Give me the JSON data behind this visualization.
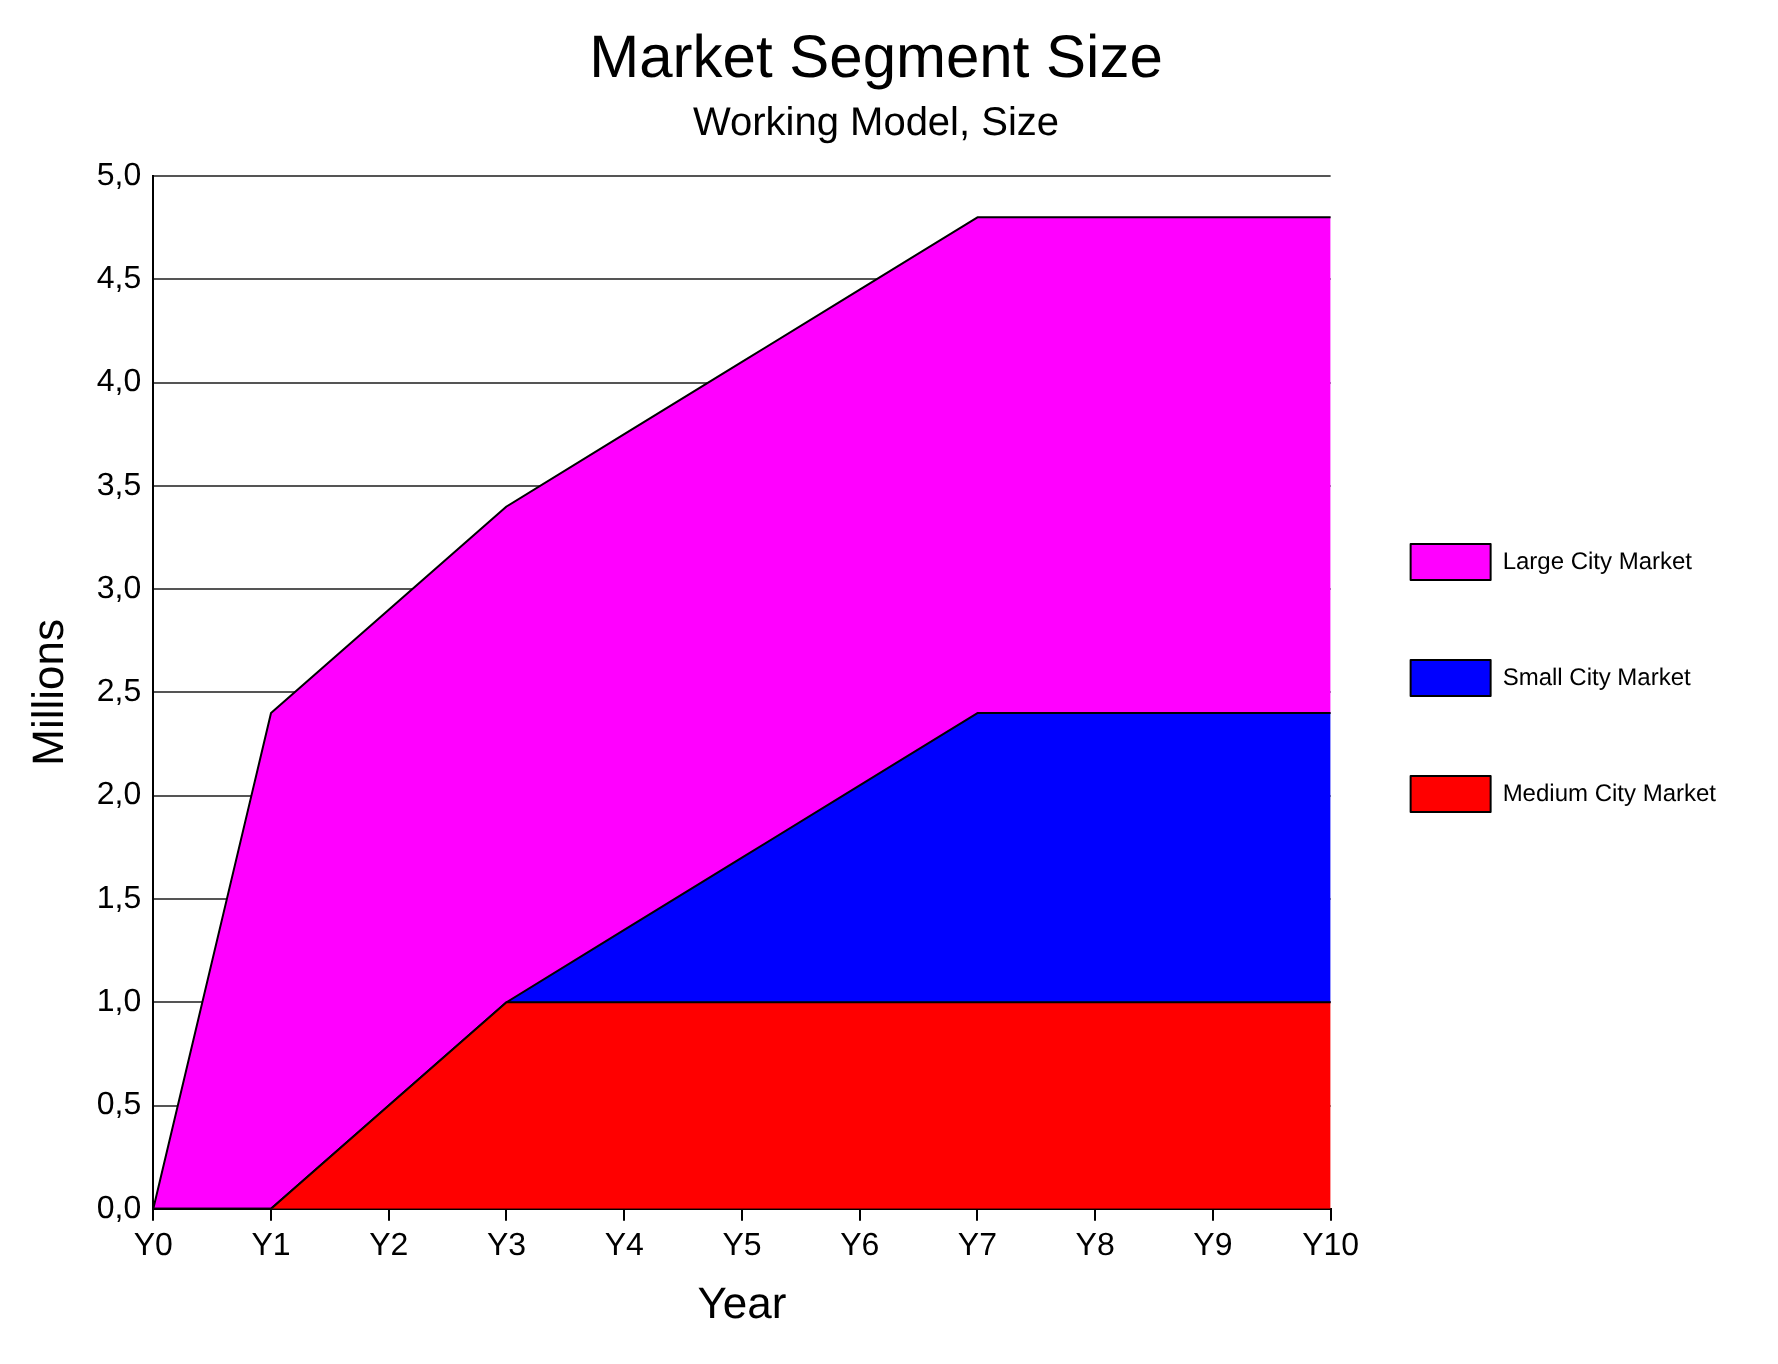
{
  "chart_data": {
    "type": "area",
    "title": "Market Segment Size",
    "subtitle": "Working Model, Size",
    "xlabel": "Year",
    "ylabel": "Millions",
    "categories": [
      "Y0",
      "Y1",
      "Y2",
      "Y3",
      "Y4",
      "Y5",
      "Y6",
      "Y7",
      "Y8",
      "Y9",
      "Y10"
    ],
    "series": [
      {
        "name": "Medium City Market",
        "color": "#ff0000",
        "values": [
          0,
          0,
          0.5,
          1.0,
          1.0,
          1.0,
          1.0,
          1.0,
          1.0,
          1.0,
          1.0
        ]
      },
      {
        "name": "Small City Market",
        "color": "#0000ff",
        "values": [
          0,
          0,
          0,
          0,
          0.35,
          0.7,
          1.05,
          1.4,
          1.4,
          1.4,
          1.4
        ]
      },
      {
        "name": "Large City Market",
        "color": "#ff00ff",
        "values": [
          0,
          2.4,
          2.4,
          2.4,
          2.4,
          2.4,
          2.4,
          2.4,
          2.4,
          2.4,
          2.4
        ]
      }
    ],
    "stacked": true,
    "ylim": [
      0,
      5
    ],
    "yticks": [
      {
        "value": 0,
        "label": "0,0"
      },
      {
        "value": 0.5,
        "label": "0,5"
      },
      {
        "value": 1,
        "label": "1,0"
      },
      {
        "value": 1.5,
        "label": "1,5"
      },
      {
        "value": 2,
        "label": "2,0"
      },
      {
        "value": 2.5,
        "label": "2,5"
      },
      {
        "value": 3,
        "label": "3,0"
      },
      {
        "value": 3.5,
        "label": "3,5"
      },
      {
        "value": 4,
        "label": "4,0"
      },
      {
        "value": 4.5,
        "label": "4,5"
      },
      {
        "value": 5,
        "label": "5,0"
      }
    ],
    "grid": "y",
    "legend": "right"
  }
}
